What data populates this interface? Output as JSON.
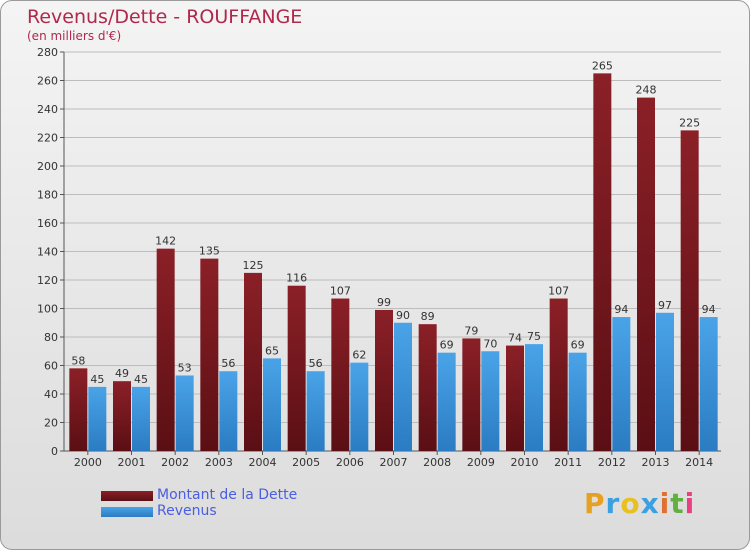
{
  "header": {
    "title": "Revenus/Dette - ROUFFANGE",
    "subtitle": "(en milliers d'€)"
  },
  "colors": {
    "dette": "#8b2027",
    "dette_dark": "#5a0f14",
    "revenus": "#4aa3e8",
    "revenus_dark": "#2b7cc2",
    "grid": "#bdbdbd"
  },
  "chart_data": {
    "type": "bar",
    "title": "Revenus/Dette - ROUFFANGE",
    "ylabel": "(en milliers d'€)",
    "xlabel": "",
    "ylim": [
      0,
      280
    ],
    "yticks": [
      0,
      20,
      40,
      60,
      80,
      100,
      120,
      140,
      160,
      180,
      200,
      220,
      240,
      260,
      280
    ],
    "grid": true,
    "categories": [
      "2000",
      "2001",
      "2002",
      "2003",
      "2004",
      "2005",
      "2006",
      "2007",
      "2008",
      "2009",
      "2010",
      "2011",
      "2012",
      "2013",
      "2014"
    ],
    "series": [
      {
        "name": "Montant de la Dette",
        "values": [
          58,
          49,
          142,
          135,
          125,
          116,
          107,
          99,
          89,
          79,
          74,
          107,
          265,
          248,
          225
        ]
      },
      {
        "name": "Revenus",
        "values": [
          45,
          45,
          53,
          56,
          65,
          56,
          62,
          90,
          69,
          70,
          75,
          69,
          94,
          97,
          94
        ]
      }
    ],
    "legend_position": "bottom-left"
  },
  "legend": {
    "dette_label": "Montant de la Dette",
    "revenus_label": "Revenus"
  },
  "brand": {
    "letters": [
      "P",
      "r",
      "o",
      "x",
      "i",
      "t",
      "i"
    ],
    "letter_colors": [
      "#e8a020",
      "#3aa0e0",
      "#e8c020",
      "#3aa0e0",
      "#e07030",
      "#60b040",
      "#e84080"
    ]
  }
}
